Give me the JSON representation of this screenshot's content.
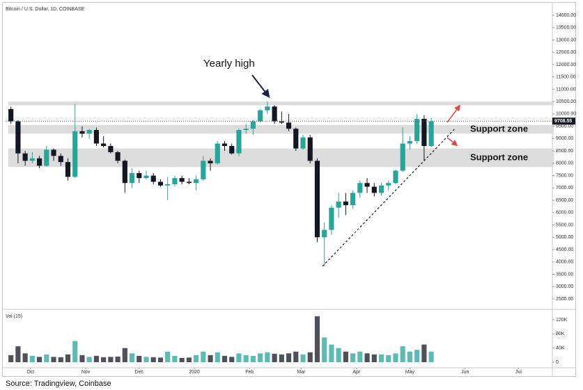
{
  "chart_data": {
    "type": "candlestick",
    "title": "Bitcoin / U.S. Dollar, 1D, COINBASE",
    "volume_label": "Vol (15)",
    "source": "Source: Tradingview, Coinbase",
    "annotation": "Yearly high",
    "up_color": "#26a69a",
    "down_color": "#131722",
    "grid": false,
    "last_price": 9708.55,
    "zones": [
      {
        "low": 10350,
        "high": 10500
      },
      {
        "low": 9200,
        "high": 9550,
        "label": "Support zone"
      },
      {
        "low": 7850,
        "high": 8600,
        "label": "Support zone"
      }
    ],
    "trendline": {
      "x": [
        175,
        249
      ],
      "y": [
        3830,
        9380
      ]
    },
    "x": [
      0,
      4,
      8,
      12,
      16,
      20,
      24,
      28,
      32,
      36,
      40,
      44,
      48,
      52,
      56,
      60,
      64,
      68,
      72,
      76,
      80,
      84,
      88,
      92,
      96,
      100,
      104,
      108,
      112,
      116,
      120,
      124,
      128,
      132,
      136,
      140,
      144,
      148,
      152,
      156,
      160,
      164,
      168,
      172,
      176,
      180,
      184,
      188,
      192,
      196,
      200,
      204,
      208,
      212,
      216,
      220,
      224,
      228,
      232,
      236
    ],
    "open": [
      10200,
      9700,
      8400,
      8100,
      8200,
      7900,
      8550,
      8300,
      8050,
      7450,
      9300,
      9200,
      9350,
      8800,
      8700,
      8450,
      8100,
      7200,
      7600,
      7400,
      7500,
      7250,
      7100,
      7150,
      7400,
      7250,
      7200,
      7350,
      8100,
      8000,
      8800,
      8700,
      8400,
      9350,
      9400,
      9700,
      10150,
      10300,
      9700,
      9650,
      9400,
      8600,
      9050,
      8100,
      5000,
      5300,
      6200,
      6450,
      6300,
      6800,
      7200,
      7050,
      6800,
      7100,
      7200,
      7700,
      8800,
      8900,
      9800,
      8700
    ],
    "high": [
      10300,
      9750,
      8500,
      8450,
      8300,
      8700,
      8600,
      8400,
      8200,
      10400,
      9500,
      9400,
      9450,
      9100,
      8800,
      8500,
      8150,
      7800,
      7700,
      7700,
      7600,
      7350,
      7450,
      7500,
      7500,
      7400,
      7500,
      8300,
      8200,
      8900,
      8900,
      8800,
      9400,
      9600,
      9750,
      10200,
      10500,
      10350,
      10100,
      10000,
      9450,
      9150,
      9150,
      8200,
      5600,
      6300,
      6800,
      6800,
      6900,
      7300,
      7400,
      7200,
      7200,
      7300,
      7750,
      9450,
      9100,
      10000,
      9950,
      9850
    ],
    "low": [
      9600,
      8000,
      7900,
      8000,
      7800,
      7850,
      8100,
      7900,
      7300,
      7400,
      9050,
      9000,
      8700,
      8650,
      8400,
      8000,
      6800,
      7000,
      7200,
      7350,
      7150,
      7050,
      6500,
      7050,
      7150,
      7150,
      6900,
      7300,
      7700,
      7950,
      8500,
      8350,
      8300,
      9200,
      9150,
      9650,
      10000,
      9600,
      9600,
      9300,
      8500,
      8550,
      8000,
      4800,
      3850,
      5100,
      5800,
      5900,
      6150,
      6600,
      6800,
      6650,
      6700,
      6900,
      7150,
      7650,
      8550,
      8800,
      8100,
      8650
    ],
    "close": [
      9700,
      8400,
      8100,
      8200,
      7900,
      8550,
      8300,
      8050,
      7450,
      9300,
      9200,
      9350,
      8800,
      8700,
      8450,
      8100,
      7200,
      7600,
      7400,
      7500,
      7250,
      7100,
      7150,
      7400,
      7250,
      7200,
      7350,
      8100,
      8000,
      8800,
      8700,
      8400,
      9350,
      9400,
      9700,
      10150,
      10300,
      9700,
      9650,
      9400,
      8600,
      9050,
      8100,
      5000,
      5300,
      6200,
      6450,
      6300,
      6800,
      7200,
      7050,
      6800,
      7100,
      7200,
      7700,
      8800,
      8900,
      9800,
      8700,
      9700
    ],
    "volume": [
      20000,
      45000,
      25000,
      18000,
      15000,
      22000,
      15000,
      14000,
      22000,
      60000,
      20000,
      15000,
      18000,
      14000,
      15000,
      16000,
      40000,
      25000,
      18000,
      15000,
      14000,
      13000,
      30000,
      18000,
      12000,
      13000,
      20000,
      30000,
      20000,
      28000,
      18000,
      15000,
      25000,
      20000,
      18000,
      25000,
      28000,
      24000,
      22000,
      25000,
      30000,
      22000,
      28000,
      130000,
      70000,
      50000,
      40000,
      30000,
      25000,
      30000,
      25000,
      22000,
      22000,
      20000,
      25000,
      45000,
      30000,
      35000,
      50000,
      30000
    ],
    "xlim": [
      -3,
      304
    ],
    "xticks": [
      {
        "value": 11,
        "label": "Oct"
      },
      {
        "value": 42,
        "label": "Nov"
      },
      {
        "value": 72,
        "label": "Dec"
      },
      {
        "value": 103,
        "label": "2020"
      },
      {
        "value": 134,
        "label": "Feb"
      },
      {
        "value": 163,
        "label": "Mar"
      },
      {
        "value": 194,
        "label": "Apr"
      },
      {
        "value": 224,
        "label": "May"
      },
      {
        "value": 255,
        "label": "Jun"
      },
      {
        "value": 285,
        "label": "Jul"
      }
    ],
    "ylim": [
      2134,
      14394
    ],
    "yticks": [
      {
        "value": 2500,
        "label": "2500.00"
      },
      {
        "value": 3000,
        "label": "3000.00"
      },
      {
        "value": 3500,
        "label": "3500.00"
      },
      {
        "value": 4000,
        "label": "4000.00"
      },
      {
        "value": 4500,
        "label": "4500.00"
      },
      {
        "value": 5000,
        "label": "5000.00"
      },
      {
        "value": 5500,
        "label": "5500.00"
      },
      {
        "value": 6000,
        "label": "6000.00"
      },
      {
        "value": 6500,
        "label": "6500.00"
      },
      {
        "value": 7000,
        "label": "7000.00"
      },
      {
        "value": 7500,
        "label": "7500.00"
      },
      {
        "value": 8000,
        "label": "8000.00"
      },
      {
        "value": 8500,
        "label": "8500.00"
      },
      {
        "value": 9000,
        "label": "9000.00"
      },
      {
        "value": 9500,
        "label": "9500.00"
      },
      {
        "value": 10000,
        "label": "10000.00"
      },
      {
        "value": 10500,
        "label": "10500.00"
      },
      {
        "value": 11000,
        "label": "11000.00"
      },
      {
        "value": 11500,
        "label": "11500.00"
      },
      {
        "value": 12000,
        "label": "12000.00"
      },
      {
        "value": 12500,
        "label": "12500.00"
      },
      {
        "value": 13000,
        "label": "13000.00"
      },
      {
        "value": 13500,
        "label": "13500.00"
      },
      {
        "value": 14000,
        "label": "14000.00"
      }
    ],
    "vol_ylim": [
      -11800,
      145600
    ],
    "vol_ticks": [
      0,
      {
        "value": 40000,
        "label": "40K"
      },
      {
        "value": 80000,
        "label": "80K"
      },
      {
        "value": 120000,
        "label": "120K"
      }
    ]
  }
}
